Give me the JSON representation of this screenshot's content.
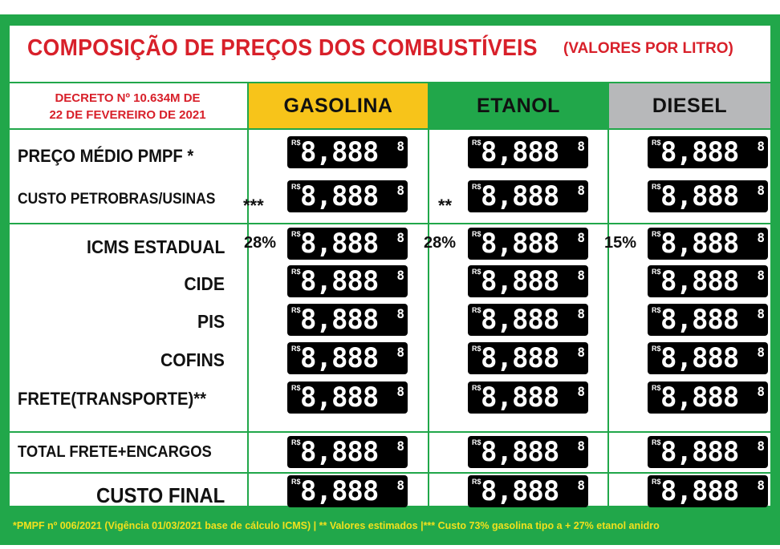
{
  "title": "COMPOSIÇÃO DE PREÇOS DOS COMBUSTÍVEIS",
  "title_note": "(VALORES POR LITRO)",
  "decree": {
    "line1": "DECRETO Nº 10.634M DE",
    "line2": "22 DE FEVEREIRO DE 2021"
  },
  "columns": [
    {
      "label": "GASOLINA",
      "color": "#f7c41a"
    },
    {
      "label": "ETANOL",
      "color": "#21a74a"
    },
    {
      "label": "DIESEL",
      "color": "#b7b8ba"
    }
  ],
  "colors": {
    "brand_green": "#21a74a",
    "title_red": "#d8202a",
    "footer_yellow": "#f1e11d"
  },
  "display": {
    "currency": "R$",
    "value": "8,888",
    "superscript": "8"
  },
  "rows": {
    "pmpf": "PREÇO MÉDIO PMPF *",
    "custo_petrobras": "CUSTO PETROBRAS/USINAS",
    "icms": "ICMS ESTADUAL",
    "cide": "CIDE",
    "pis": "PIS",
    "cofins": "COFINS",
    "frete": "FRETE(TRANSPORTE)**",
    "total": "TOTAL FRETE+ENCARGOS",
    "final": "CUSTO FINAL"
  },
  "icms_rates": {
    "gasolina": "28%",
    "etanol": "28%",
    "diesel": "15%"
  },
  "markers": {
    "gasolina": "***",
    "etanol": "**"
  },
  "footer": "*PMPF nº 006/2021 (Vigência 01/03/2021 base de cálculo ICMS)  | ** Valores estimados  |*** Custo 73% gasolina tipo a + 27% etanol anidro"
}
